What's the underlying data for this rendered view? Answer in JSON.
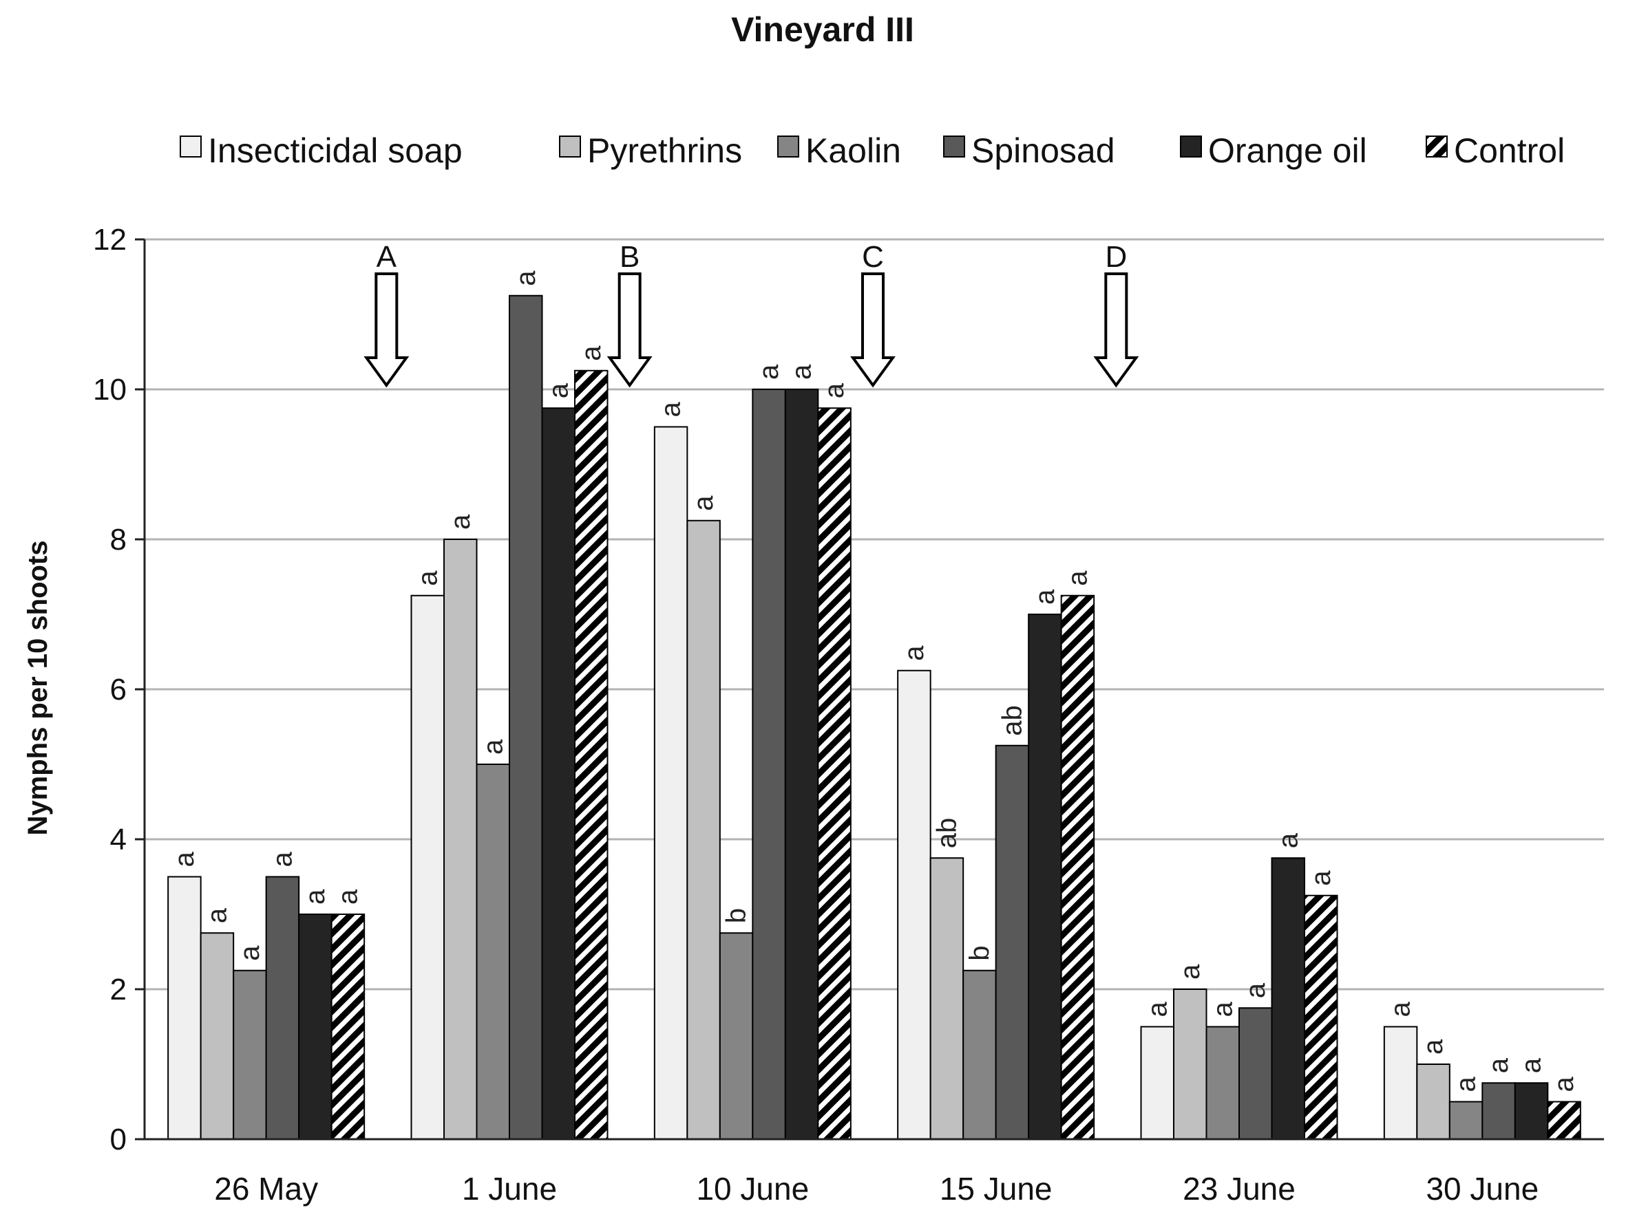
{
  "chart_data": {
    "type": "bar",
    "title": "Vineyard III",
    "xlabel": "",
    "ylabel": "Nymphs per 10 shoots",
    "ylim": [
      0,
      12
    ],
    "yticks": [
      0,
      2,
      4,
      6,
      8,
      10,
      12
    ],
    "grid": true,
    "legend_position": "top",
    "categories": [
      "26 May",
      "1 June",
      "10 June",
      "15 June",
      "23 June",
      "30 June"
    ],
    "series": [
      {
        "name": "Insecticidal soap",
        "color": "#f0f0f0",
        "pattern": "solid",
        "values": [
          3.5,
          7.25,
          9.5,
          6.25,
          1.5,
          1.5
        ],
        "labels": [
          "a",
          "a",
          "a",
          "a",
          "a",
          "a"
        ]
      },
      {
        "name": "Pyrethrins",
        "color": "#c0c0c0",
        "pattern": "solid",
        "values": [
          2.75,
          8.0,
          8.25,
          3.75,
          2.0,
          1.0
        ],
        "labels": [
          "a",
          "a",
          "a",
          "ab",
          "a",
          "a"
        ]
      },
      {
        "name": "Kaolin",
        "color": "#858585",
        "pattern": "solid",
        "values": [
          2.25,
          5.0,
          2.75,
          2.25,
          1.5,
          0.5
        ],
        "labels": [
          "a",
          "a",
          "b",
          "b",
          "a",
          "a"
        ]
      },
      {
        "name": "Spinosad",
        "color": "#595959",
        "pattern": "solid",
        "values": [
          3.5,
          11.25,
          10.0,
          5.25,
          1.75,
          0.75
        ],
        "labels": [
          "a",
          "a",
          "a",
          "ab",
          "a",
          "a"
        ]
      },
      {
        "name": "Orange oil",
        "color": "#242424",
        "pattern": "solid",
        "values": [
          3.0,
          9.75,
          10.0,
          7.0,
          3.75,
          0.75
        ],
        "labels": [
          "a",
          "a",
          "a",
          "a",
          "a",
          "a"
        ]
      },
      {
        "name": "Control",
        "color": "#000000",
        "pattern": "diagonal-stripes",
        "values": [
          3.0,
          10.25,
          9.75,
          7.25,
          3.25,
          0.5
        ],
        "labels": [
          "a",
          "a",
          "a",
          "a",
          "a",
          "a"
        ]
      }
    ],
    "annotations": [
      {
        "label": "A",
        "after_category": "26 May",
        "type": "down-arrow"
      },
      {
        "label": "B",
        "after_category": "1 June",
        "type": "down-arrow"
      },
      {
        "label": "C",
        "after_category": "10 June",
        "type": "down-arrow"
      },
      {
        "label": "D",
        "after_category": "15 June",
        "type": "down-arrow"
      }
    ]
  }
}
